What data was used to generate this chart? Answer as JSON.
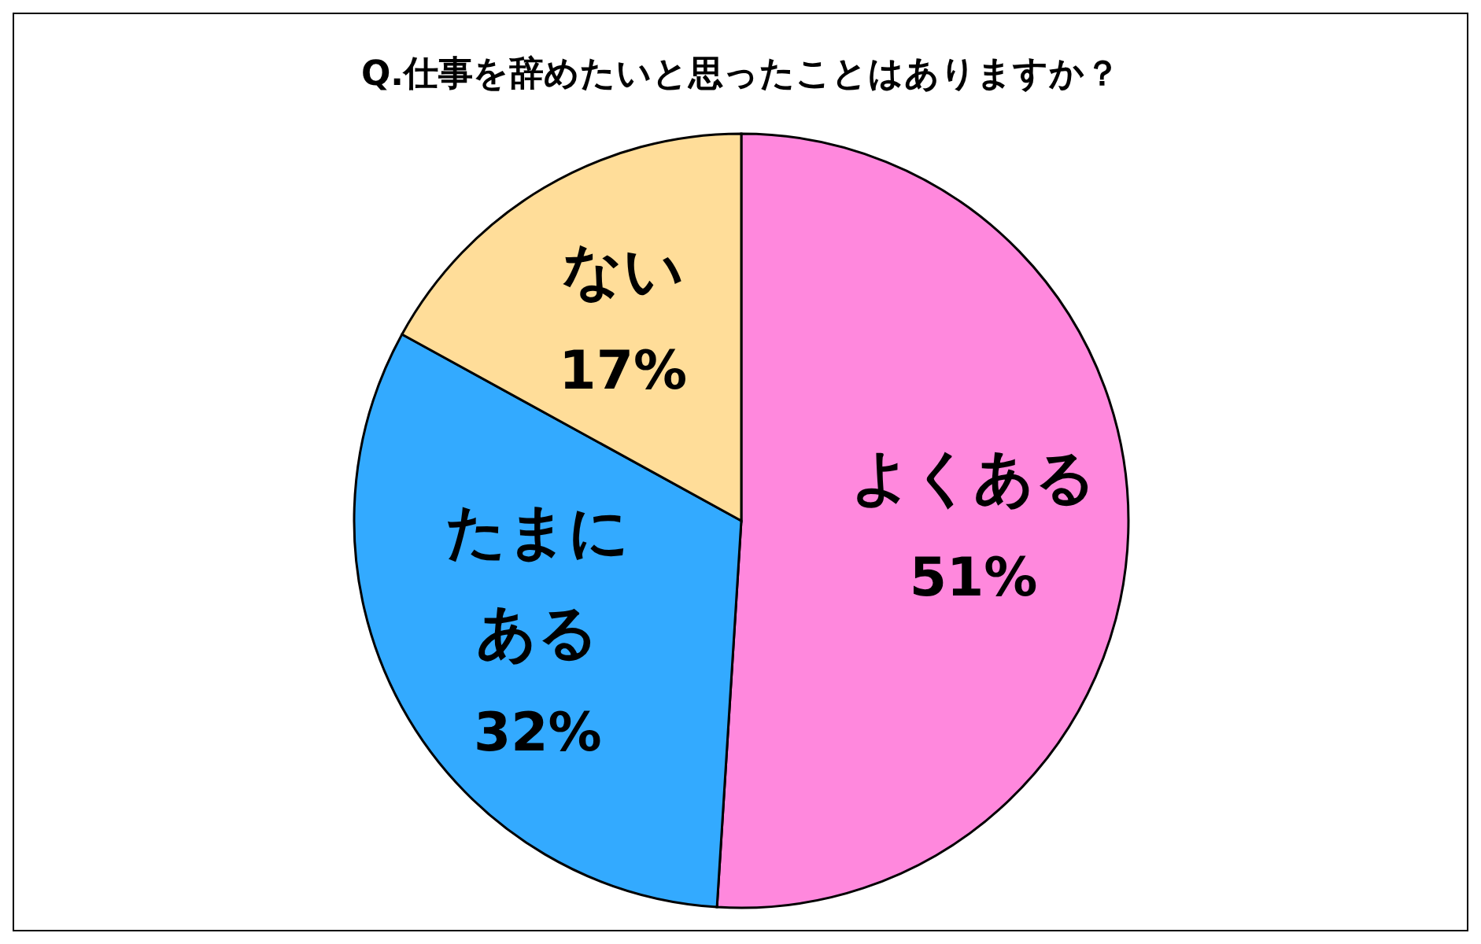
{
  "chart_data": {
    "type": "pie",
    "title": "Q.仕事を辞めたいと思ったことはありますか？",
    "categories": [
      "よくある",
      "たまにある",
      "ない"
    ],
    "values": [
      51,
      32,
      17
    ],
    "colors": [
      "#ff88dd",
      "#33aaff",
      "#ffdd99"
    ],
    "value_labels": [
      "51%",
      "32%",
      "17%"
    ]
  }
}
